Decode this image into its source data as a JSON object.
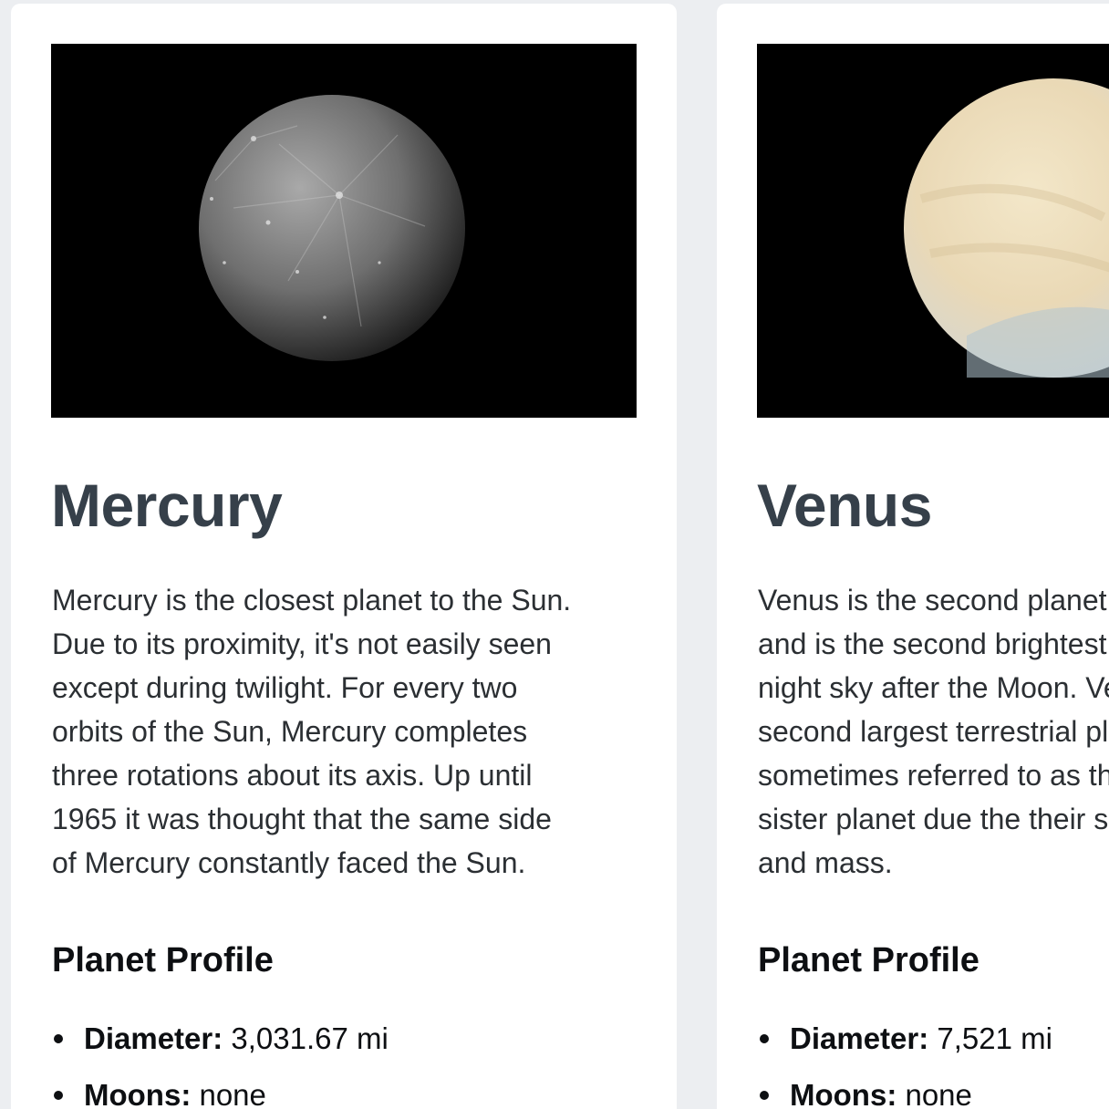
{
  "planets": [
    {
      "name": "Mercury",
      "description_lines": [
        "Mercury is the closest planet to the Sun.",
        "Due to its proximity, it's not easily seen",
        "except during twilight. For every two",
        "orbits of the Sun, Mercury completes",
        "three rotations about its axis. Up until",
        "1965 it was thought that the same side",
        "of Mercury constantly faced the Sun."
      ],
      "profile_heading": "Planet Profile",
      "facts": [
        {
          "label": "Diameter:",
          "value": " 3,031.67 mi"
        },
        {
          "label": "Moons:",
          "value": " none"
        }
      ],
      "photo_colors": {
        "surface": "#8a8a8a",
        "dark": "#2e2e2e"
      }
    },
    {
      "name": "Venus",
      "description_lines": [
        "Venus is the second planet from the Sun",
        "and is the second brightest object in the",
        "night sky after the Moon. Venus is the",
        "second largest terrestrial planet and is",
        "sometimes referred to as the Earth's",
        "sister planet due the their similar size",
        "and mass."
      ],
      "profile_heading": "Planet Profile",
      "facts": [
        {
          "label": "Diameter:",
          "value": " 7,521 mi"
        },
        {
          "label": "Moons:",
          "value": " none"
        }
      ],
      "photo_colors": {
        "surface": "#efe3c6",
        "dark": "#b9c4c9"
      }
    }
  ]
}
